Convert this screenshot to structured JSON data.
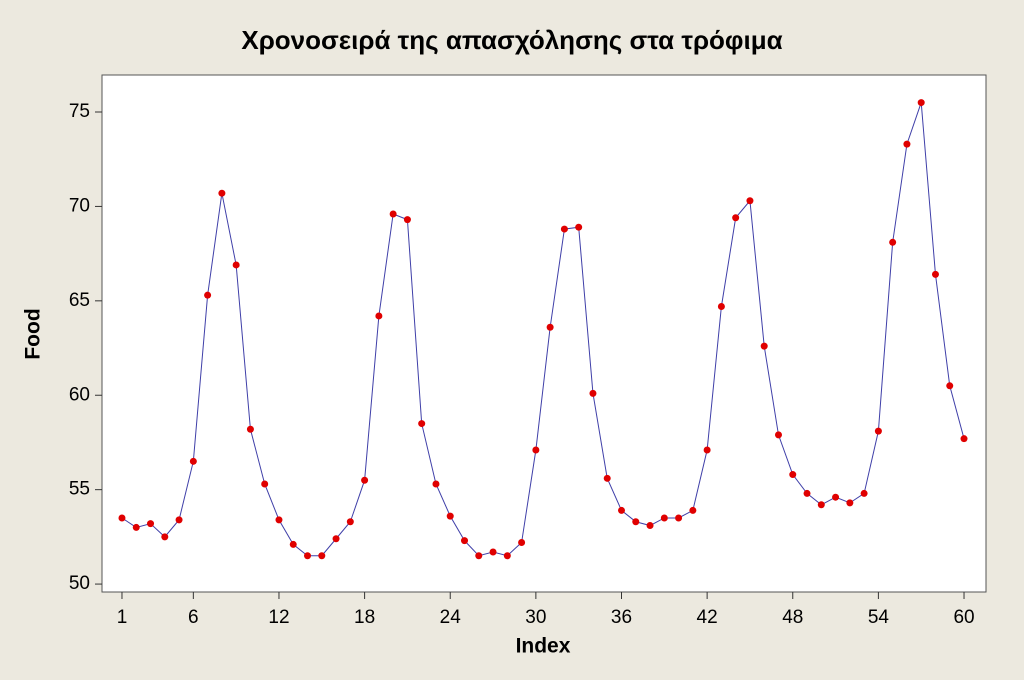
{
  "chart_data": {
    "type": "line",
    "title": "Χρονοσειρά της απασχόλησης στα τρόφιμα",
    "x_label": "Index",
    "y_label": "Food",
    "x": [
      1,
      2,
      3,
      4,
      5,
      6,
      7,
      8,
      9,
      10,
      11,
      12,
      13,
      14,
      15,
      16,
      17,
      18,
      19,
      20,
      21,
      22,
      23,
      24,
      25,
      26,
      27,
      28,
      29,
      30,
      31,
      32,
      33,
      34,
      35,
      36,
      37,
      38,
      39,
      40,
      41,
      42,
      43,
      44,
      45,
      46,
      47,
      48,
      49,
      50,
      51,
      52,
      53,
      54,
      55,
      56,
      57,
      58,
      59,
      60
    ],
    "values": [
      53.5,
      53.0,
      53.2,
      52.5,
      53.4,
      56.5,
      65.3,
      70.7,
      66.9,
      58.2,
      55.3,
      53.4,
      52.1,
      51.5,
      51.5,
      52.4,
      53.3,
      55.5,
      64.2,
      69.6,
      69.3,
      58.5,
      55.3,
      53.6,
      52.3,
      51.5,
      51.7,
      51.5,
      52.2,
      57.1,
      63.6,
      68.8,
      68.9,
      60.1,
      55.6,
      53.9,
      53.3,
      53.1,
      53.5,
      53.5,
      53.9,
      57.1,
      64.7,
      69.4,
      70.3,
      62.6,
      57.9,
      55.8,
      54.8,
      54.2,
      54.6,
      54.3,
      54.8,
      58.1,
      68.1,
      73.3,
      75.5,
      66.4,
      60.5,
      57.7
    ],
    "line_color": "#3f3fa8",
    "marker_color": "#e00000",
    "xlim": [
      -0.4,
      61.54
    ],
    "xticks": [
      1,
      6,
      12,
      18,
      24,
      30,
      36,
      42,
      48,
      54,
      60
    ],
    "ylim": [
      49.58,
      76.96
    ],
    "yticks": [
      50,
      55,
      60,
      65,
      70,
      75
    ],
    "grid": false
  }
}
